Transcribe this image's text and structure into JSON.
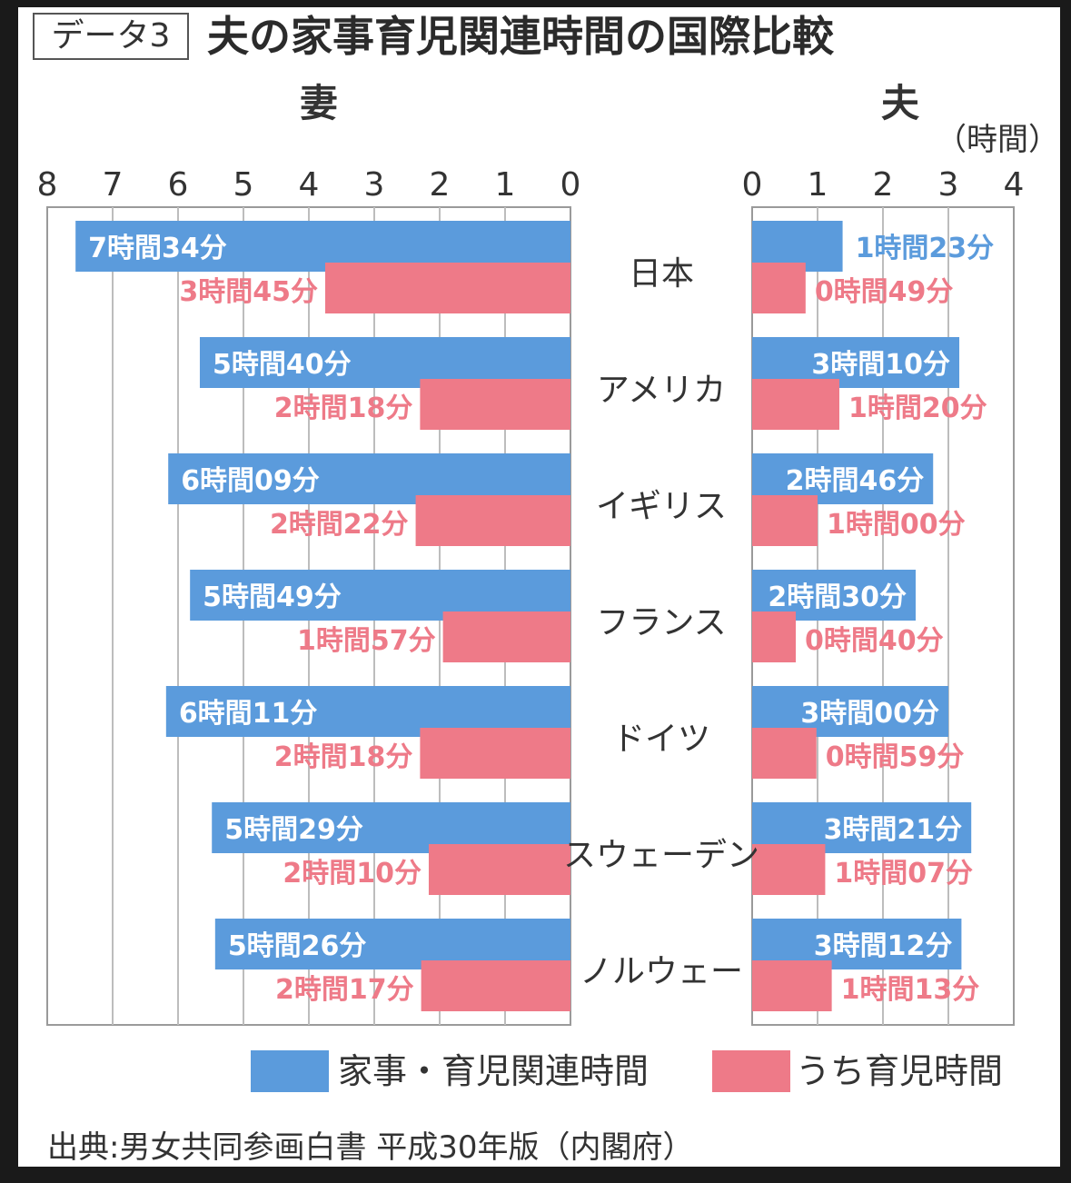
{
  "header": {
    "tag": "データ3",
    "title": "夫の家事育児関連時間の国際比較"
  },
  "chart_data": {
    "type": "bar",
    "title": "夫の家事育児関連時間の国際比較",
    "unit": "（時間）",
    "panels": [
      {
        "key": "wife",
        "title": "妻",
        "xlim": [
          8,
          0
        ],
        "ticks": [
          "8",
          "7",
          "6",
          "5",
          "4",
          "3",
          "2",
          "1",
          "0"
        ],
        "orientation": "right-to-left"
      },
      {
        "key": "husband",
        "title": "夫",
        "xlim": [
          0,
          4
        ],
        "ticks": [
          "0",
          "1",
          "2",
          "3",
          "4"
        ],
        "orientation": "left-to-right"
      }
    ],
    "categories": [
      "日本",
      "アメリカ",
      "イギリス",
      "フランス",
      "ドイツ",
      "スウェーデン",
      "ノルウェー"
    ],
    "series": [
      {
        "name": "家事・育児関連時間",
        "color": "#5b9bdc",
        "wife_hours": [
          7.567,
          5.667,
          6.15,
          5.817,
          6.183,
          5.483,
          5.433
        ],
        "wife_labels": [
          "7時間34分",
          "5時間40分",
          "6時間09分",
          "5時間49分",
          "6時間11分",
          "5時間29分",
          "5時間26分"
        ],
        "husband_hours": [
          1.383,
          3.167,
          2.767,
          2.5,
          3.0,
          3.35,
          3.2
        ],
        "husband_labels": [
          "1時間23分",
          "3時間10分",
          "2時間46分",
          "2時間30分",
          "3時間00分",
          "3時間21分",
          "3時間12分"
        ]
      },
      {
        "name": "うち育児時間",
        "color": "#ee7a88",
        "wife_hours": [
          3.75,
          2.3,
          2.367,
          1.95,
          2.3,
          2.167,
          2.283
        ],
        "wife_labels": [
          "3時間45分",
          "2時間18分",
          "2時間22分",
          "1時間57分",
          "2時間18分",
          "2時間10分",
          "2時間17分"
        ],
        "husband_hours": [
          0.817,
          1.333,
          1.0,
          0.667,
          0.983,
          1.117,
          1.217
        ],
        "husband_labels": [
          "0時間49分",
          "1時間20分",
          "1時間00分",
          "0時間40分",
          "0時間59分",
          "1時間07分",
          "1時間13分"
        ]
      }
    ],
    "legend_position": "bottom",
    "grid": true
  },
  "source": "出典:男女共同参画白書 平成30年版（内閣府）"
}
